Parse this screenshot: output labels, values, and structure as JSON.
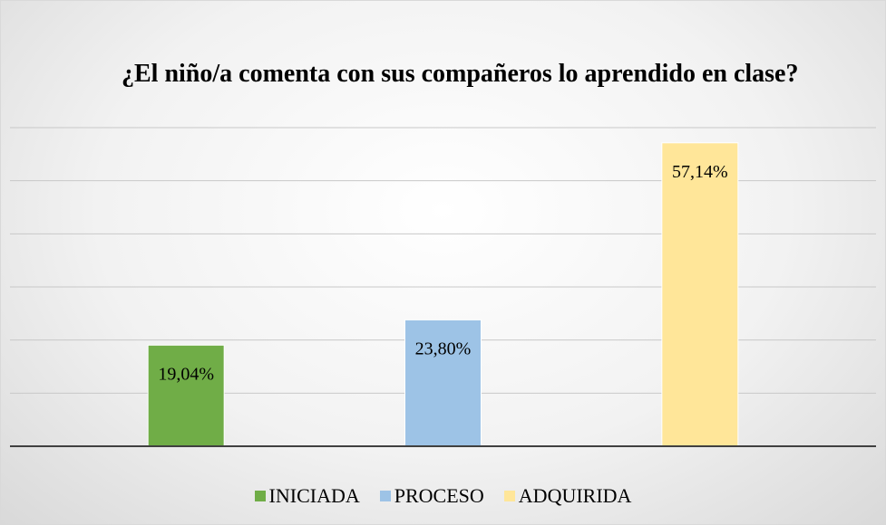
{
  "chart_data": {
    "type": "bar",
    "title": "¿El niño/a comenta con sus compañeros lo aprendido en clase?",
    "series": [
      {
        "name": "INICIADA",
        "color": "#70ad47",
        "values": [
          19.04
        ],
        "value_labels": [
          "19,04%"
        ]
      },
      {
        "name": "PROCESO",
        "color": "#9dc3e6",
        "values": [
          23.8
        ],
        "value_labels": [
          "23,80%"
        ]
      },
      {
        "name": "ADQUIRIDA",
        "color": "#ffe699",
        "values": [
          57.14
        ],
        "value_labels": [
          "57,14%"
        ]
      }
    ],
    "ylim": [
      0,
      60
    ],
    "yticks": [
      0,
      10,
      20,
      30,
      40,
      50,
      60
    ],
    "grid": true,
    "legend": "bottom"
  }
}
